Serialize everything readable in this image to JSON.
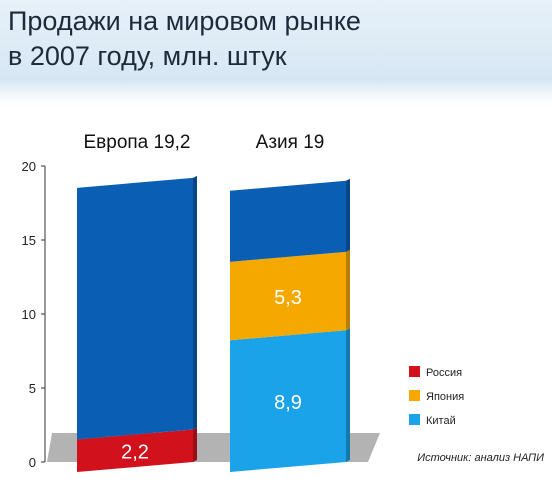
{
  "title": "Продажи на мировом рынке\nв 2007 году, млн. штук",
  "source": "Источник: анализ НАПИ",
  "colors": {
    "top_segment": "#0a5fb4",
    "russia": "#d1111c",
    "japan": "#f5a800",
    "china": "#1aa3e8",
    "floor": "#b3b3b3"
  },
  "chart_data": {
    "type": "bar",
    "stacked": true,
    "categories": [
      "Европа 19,2",
      "Азия 19"
    ],
    "totals": [
      19.2,
      19
    ],
    "series": [
      {
        "name": "",
        "color_key": "top_segment",
        "values": [
          17.0,
          4.8
        ],
        "labels": [
          "",
          ""
        ]
      },
      {
        "name": "Россия",
        "color_key": "russia",
        "values": [
          2.2,
          0
        ],
        "labels": [
          "2,2",
          ""
        ]
      },
      {
        "name": "Япония",
        "color_key": "japan",
        "values": [
          0,
          5.3
        ],
        "labels": [
          "",
          "5,3"
        ]
      },
      {
        "name": "Китай",
        "color_key": "china",
        "values": [
          0,
          8.9
        ],
        "labels": [
          "",
          "8,9"
        ]
      }
    ],
    "stack_order": [
      "Россия",
      "Китай",
      "Япония",
      ""
    ],
    "ylim": [
      0,
      20
    ],
    "yticks": [
      "0",
      "5",
      "10",
      "15",
      "20"
    ],
    "legend": [
      "Россия",
      "Япония",
      "Китай"
    ],
    "legend_position": "right",
    "grid": false
  }
}
